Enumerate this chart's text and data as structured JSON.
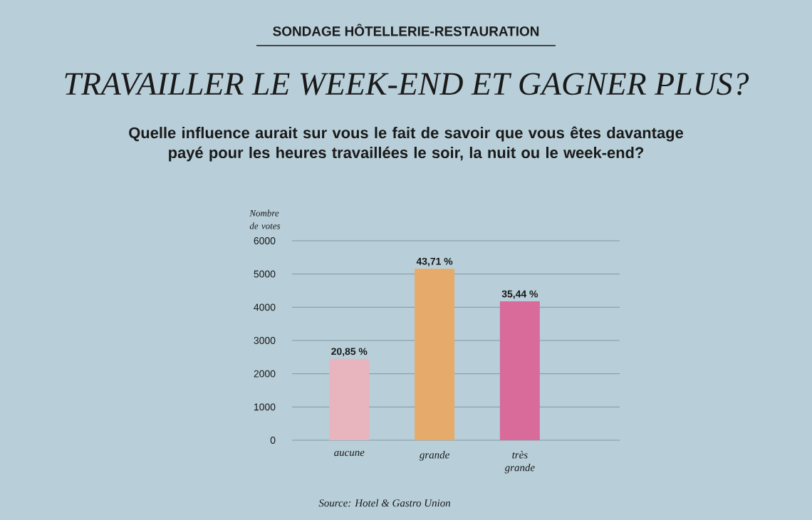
{
  "chart_data": {
    "type": "bar",
    "title": "TRAVAILLER LE WEEK-END ET GAGNER PLUS?",
    "subtitle": "Quelle influence aurait sur vous le fait de savoir que vous êtes davantage payé pour les heures travaillées le soir, la nuit ou le week-end?",
    "ylabel": "Nombre de votes",
    "annotations": [
      "SONDAGE HÔTELLERIE-RESTAURATION",
      {
        "text": "20,85 %",
        "x": "aucune",
        "y": 2450
      },
      {
        "text": "43,71 %",
        "x": "grande",
        "y": 5160
      },
      {
        "text": "35,44 %",
        "x": "très grande",
        "y": 4180
      },
      "Source: Hotel & Gastro Union"
    ],
    "categories": [
      "aucune",
      "grande",
      "très grande"
    ],
    "values": [
      2450,
      5160,
      4180
    ],
    "colors": [
      "#e8b4bd",
      "#e6ab6a",
      "#d96b9a"
    ],
    "ylim": [
      0,
      6000
    ],
    "yticks": [
      0,
      1000,
      2000,
      3000,
      4000,
      5000,
      6000
    ],
    "grid": "y"
  }
}
